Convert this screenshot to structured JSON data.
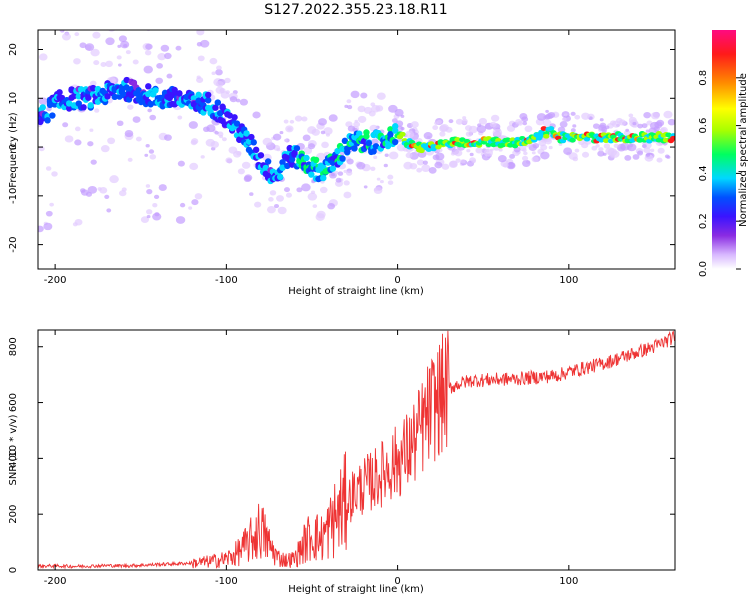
{
  "title": "S127.2022.355.23.18.R11",
  "chart_data": [
    {
      "type": "heatmap",
      "xlabel": "Height of straight line (km)",
      "ylabel": "Frequency (Hz)",
      "xlim": [
        -210,
        162
      ],
      "ylim": [
        -25,
        24
      ],
      "xticks": [
        -200,
        -100,
        0,
        100
      ],
      "xtick_labels": [
        "-200",
        "-100",
        "0",
        "100"
      ],
      "yticks": [
        -20,
        -10,
        0,
        10,
        20
      ],
      "ytick_labels": [
        "-20",
        "-10",
        "0",
        "10",
        "20"
      ],
      "ridge": {
        "x": [
          -208,
          -200,
          -190,
          -180,
          -170,
          -160,
          -150,
          -140,
          -130,
          -120,
          -110,
          -100,
          -92,
          -85,
          -80,
          -75,
          -70,
          -65,
          -60,
          -55,
          -50,
          -45,
          -40,
          -35,
          -30,
          -25,
          -20,
          -15,
          -10,
          -5,
          0,
          5,
          10,
          20,
          30,
          40,
          50,
          60,
          70,
          80,
          85,
          90,
          95,
          100,
          110,
          120,
          130,
          140,
          150,
          160
        ],
        "y": [
          6,
          9,
          10,
          10,
          11,
          12,
          11,
          10,
          10,
          9,
          9,
          6,
          3,
          0,
          -3,
          -5,
          -6,
          -2,
          -2,
          -3,
          -4,
          -5,
          -4,
          -2,
          0,
          1,
          1,
          1,
          1,
          2,
          3,
          1,
          0,
          0,
          1,
          1,
          1,
          1,
          1,
          2,
          3,
          3,
          2,
          2,
          2,
          2,
          2,
          2,
          2,
          2
        ]
      },
      "colorbar": {
        "label": "Normalized spectral amplitude",
        "ticks": [
          0.0,
          0.2,
          0.4,
          0.6,
          0.8
        ],
        "tick_labels": [
          "0.0",
          "0.2",
          "0.4",
          "0.6",
          "0.8"
        ],
        "range": [
          0,
          1
        ],
        "colors": [
          "#ffffff",
          "#d8b8ff",
          "#8a2be2",
          "#3a14ff",
          "#0050ff",
          "#00d8ff",
          "#00ff60",
          "#a8ff00",
          "#ffff00",
          "#ff8a00",
          "#ff1a1a",
          "#ff0a80"
        ]
      }
    },
    {
      "type": "line",
      "xlabel": "Height of straight line (km)",
      "ylabel": "SNR (10 * v/v)",
      "xlim": [
        -210,
        162
      ],
      "ylim": [
        0,
        860
      ],
      "xticks": [
        -200,
        -100,
        0,
        100
      ],
      "xtick_labels": [
        "-200",
        "-100",
        "0",
        "100"
      ],
      "yticks": [
        0,
        200,
        400,
        600,
        800
      ],
      "ytick_labels": [
        "0",
        "200",
        "400",
        "600",
        "800"
      ],
      "series": [
        {
          "color": "#ee3333",
          "x": [
            -210,
            -200,
            -190,
            -180,
            -170,
            -160,
            -150,
            -140,
            -130,
            -120,
            -110,
            -100,
            -95,
            -90,
            -85,
            -80,
            -75,
            -70,
            -65,
            -60,
            -55,
            -50,
            -45,
            -40,
            -35,
            -30,
            -25,
            -20,
            -15,
            -10,
            -5,
            0,
            5,
            10,
            15,
            20,
            25,
            30,
            35,
            40,
            45,
            50,
            55,
            60,
            70,
            80,
            90,
            95,
            100,
            110,
            120,
            130,
            140,
            150,
            160,
            162
          ],
          "y": [
            14,
            15,
            13,
            14,
            16,
            15,
            17,
            20,
            22,
            25,
            30,
            40,
            55,
            80,
            110,
            150,
            90,
            45,
            35,
            40,
            90,
            130,
            110,
            150,
            200,
            240,
            280,
            300,
            320,
            340,
            370,
            390,
            420,
            460,
            520,
            580,
            620,
            650,
            665,
            675,
            680,
            680,
            682,
            683,
            685,
            690,
            695,
            700,
            710,
            725,
            740,
            760,
            780,
            800,
            830,
            835
          ]
        }
      ]
    }
  ]
}
